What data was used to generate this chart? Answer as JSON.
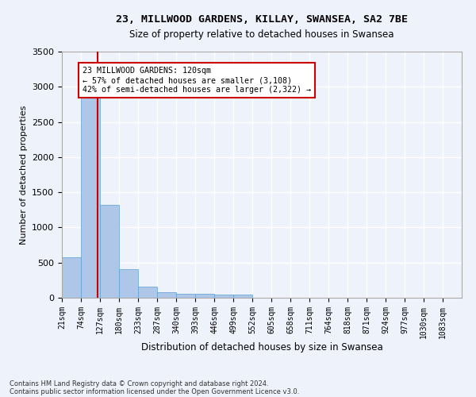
{
  "title1": "23, MILLWOOD GARDENS, KILLAY, SWANSEA, SA2 7BE",
  "title2": "Size of property relative to detached houses in Swansea",
  "xlabel": "Distribution of detached houses by size in Swansea",
  "ylabel": "Number of detached properties",
  "footnote1": "Contains HM Land Registry data © Crown copyright and database right 2024.",
  "footnote2": "Contains public sector information licensed under the Open Government Licence v3.0.",
  "annotation_title": "23 MILLWOOD GARDENS: 120sqm",
  "annotation_line1": "← 57% of detached houses are smaller (3,108)",
  "annotation_line2": "42% of semi-detached houses are larger (2,322) →",
  "bar_color": "#aec6e8",
  "bar_edge_color": "#5a9fd4",
  "red_line_color": "#cc0000",
  "annotation_box_color": "#cc0000",
  "background_color": "#eef2fa",
  "grid_color": "#ffffff",
  "bin_labels": [
    "21sqm",
    "74sqm",
    "127sqm",
    "180sqm",
    "233sqm",
    "287sqm",
    "340sqm",
    "393sqm",
    "446sqm",
    "499sqm",
    "552sqm",
    "605sqm",
    "658sqm",
    "711sqm",
    "764sqm",
    "818sqm",
    "871sqm",
    "924sqm",
    "977sqm",
    "1030sqm",
    "1083sqm"
  ],
  "bin_edges": [
    21,
    74,
    127,
    180,
    233,
    287,
    340,
    393,
    446,
    499,
    552,
    605,
    658,
    711,
    764,
    818,
    871,
    924,
    977,
    1030,
    1083
  ],
  "bar_heights": [
    580,
    2920,
    1320,
    410,
    155,
    80,
    62,
    55,
    45,
    40,
    0,
    0,
    0,
    0,
    0,
    0,
    0,
    0,
    0,
    0,
    0
  ],
  "red_line_x": 120,
  "ylim": [
    0,
    3500
  ],
  "yticks": [
    0,
    500,
    1000,
    1500,
    2000,
    2500,
    3000,
    3500
  ]
}
